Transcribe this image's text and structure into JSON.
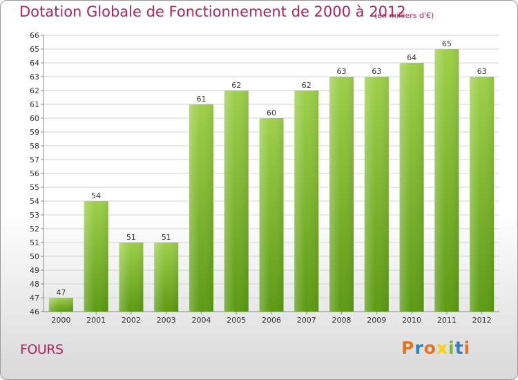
{
  "header": {
    "title": "Dotation Globale de Fonctionnement de 2000 à 2012",
    "unit": "(en milliers d'€)"
  },
  "footer": {
    "commune": "FOURS",
    "logo_text": "Proxiti"
  },
  "colors": {
    "title": "#b0245d",
    "bar_light": "#9ed04a",
    "bar_dark": "#5c9a13",
    "logo": [
      "#e8731c",
      "#2b7fc9",
      "#e8731c",
      "#ffd200",
      "#79b82a",
      "#2b7fc9",
      "#e8731c"
    ]
  },
  "chart_data": {
    "type": "bar",
    "title": "Dotation Globale de Fonctionnement de 2000 à 2012",
    "subtitle": "(en milliers d'€)",
    "categories": [
      "2000",
      "2001",
      "2002",
      "2003",
      "2004",
      "2005",
      "2006",
      "2007",
      "2008",
      "2009",
      "2010",
      "2011",
      "2012"
    ],
    "values": [
      47,
      54,
      51,
      51,
      61,
      62,
      60,
      62,
      63,
      63,
      64,
      65,
      63
    ],
    "ylim": [
      46,
      66
    ],
    "ytick_step": 1,
    "grid": true,
    "legend": "none"
  }
}
